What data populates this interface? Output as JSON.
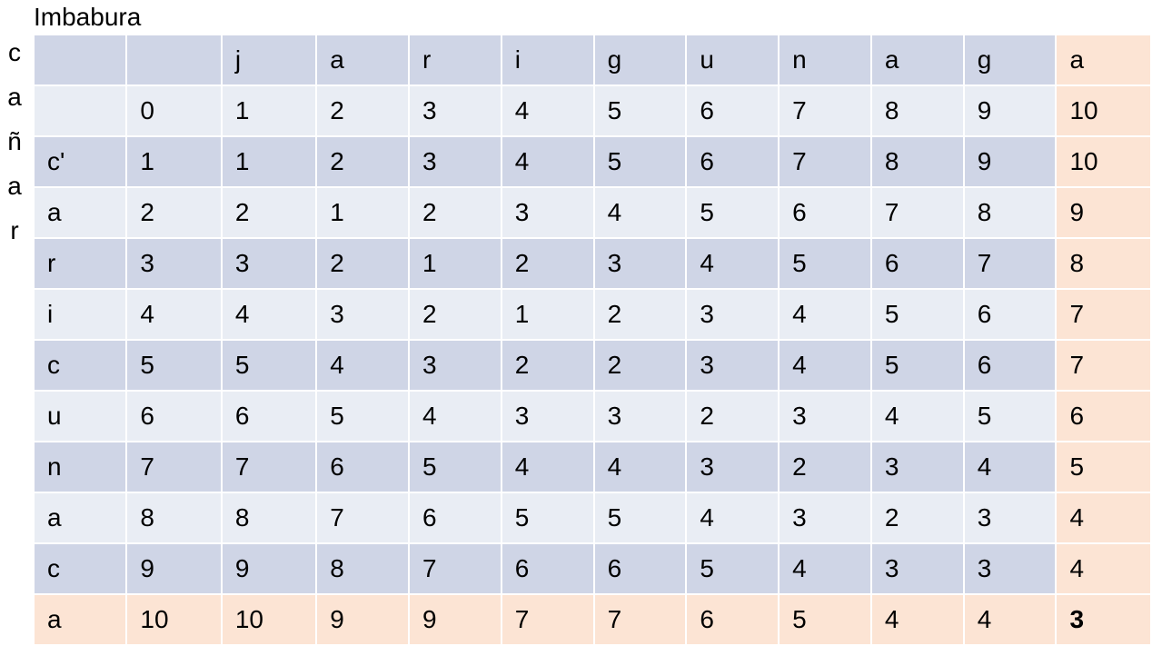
{
  "title": "Imbabura",
  "vertical_word": [
    "c",
    "a",
    "ñ",
    "a",
    "r"
  ],
  "table": {
    "rows": [
      [
        "",
        "",
        "j",
        "a",
        "r",
        "i",
        "g",
        "u",
        "n",
        "a",
        "g",
        "a"
      ],
      [
        "",
        "0",
        "1",
        "2",
        "3",
        "4",
        "5",
        "6",
        "7",
        "8",
        "9",
        "10"
      ],
      [
        "c'",
        "1",
        "1",
        "2",
        "3",
        "4",
        "5",
        "6",
        "7",
        "8",
        "9",
        "10"
      ],
      [
        "a",
        "2",
        "2",
        "1",
        "2",
        "3",
        "4",
        "5",
        "6",
        "7",
        "8",
        "9"
      ],
      [
        "r",
        "3",
        "3",
        "2",
        "1",
        "2",
        "3",
        "4",
        "5",
        "6",
        "7",
        "8"
      ],
      [
        "i",
        "4",
        "4",
        "3",
        "2",
        "1",
        "2",
        "3",
        "4",
        "5",
        "6",
        "7"
      ],
      [
        "c",
        "5",
        "5",
        "4",
        "3",
        "2",
        "2",
        "3",
        "4",
        "5",
        "6",
        "7"
      ],
      [
        "u",
        "6",
        "6",
        "5",
        "4",
        "3",
        "3",
        "2",
        "3",
        "4",
        "5",
        "6"
      ],
      [
        "n",
        "7",
        "7",
        "6",
        "5",
        "4",
        "4",
        "3",
        "2",
        "3",
        "4",
        "5"
      ],
      [
        "a",
        "8",
        "8",
        "7",
        "6",
        "5",
        "5",
        "4",
        "3",
        "2",
        "3",
        "4"
      ],
      [
        "c",
        "9",
        "9",
        "8",
        "7",
        "6",
        "6",
        "5",
        "4",
        "3",
        "3",
        "4"
      ],
      [
        "a",
        "10",
        "10",
        "9",
        "9",
        "7",
        "7",
        "6",
        "5",
        "4",
        "4",
        "3"
      ]
    ]
  },
  "colors": {
    "row_dark": "#cfd5e6",
    "row_light": "#e9edf4",
    "highlight": "#fce4d4"
  }
}
